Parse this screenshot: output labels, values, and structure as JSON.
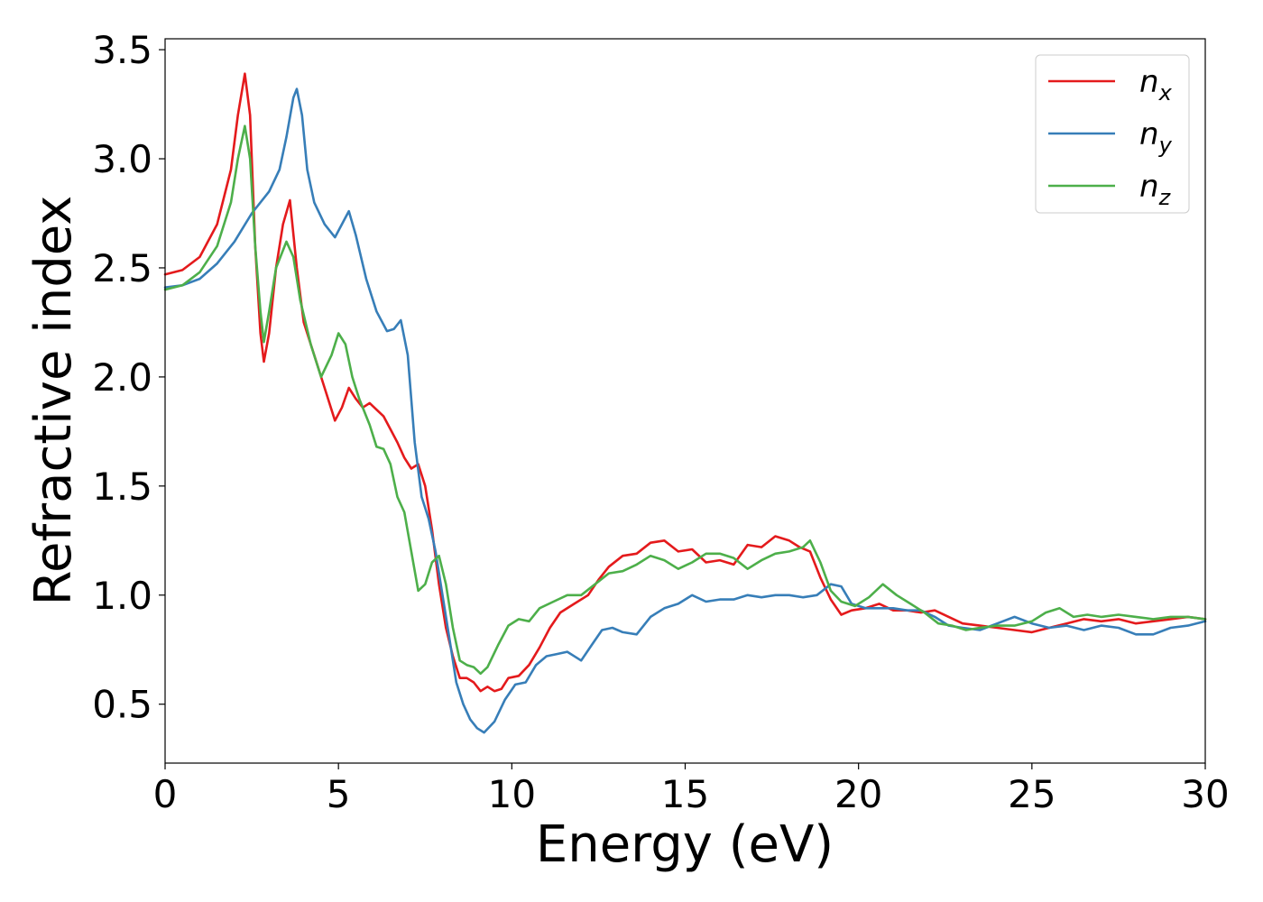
{
  "chart_data": {
    "type": "line",
    "xlabel": "Energy (eV)",
    "ylabel": "Refractive index",
    "xlim": [
      0,
      30
    ],
    "ylim": [
      0.23,
      3.55
    ],
    "xticks": [
      0,
      5,
      10,
      15,
      20,
      25,
      30
    ],
    "xtick_labels": [
      "0",
      "5",
      "10",
      "15",
      "20",
      "25",
      "30"
    ],
    "yticks": [
      0.5,
      1.0,
      1.5,
      2.0,
      2.5,
      3.0,
      3.5
    ],
    "ytick_labels": [
      "0.5",
      "1.0",
      "1.5",
      "2.0",
      "2.5",
      "3.0",
      "3.5"
    ],
    "grid": false,
    "legend_position": "top-right",
    "series": [
      {
        "name": "n",
        "subscript": "x",
        "color": "#e41a1c",
        "points": [
          [
            0,
            2.47
          ],
          [
            0.5,
            2.49
          ],
          [
            1.0,
            2.55
          ],
          [
            1.5,
            2.7
          ],
          [
            1.9,
            2.95
          ],
          [
            2.1,
            3.2
          ],
          [
            2.3,
            3.39
          ],
          [
            2.45,
            3.2
          ],
          [
            2.6,
            2.6
          ],
          [
            2.75,
            2.2
          ],
          [
            2.85,
            2.07
          ],
          [
            3.0,
            2.2
          ],
          [
            3.2,
            2.5
          ],
          [
            3.4,
            2.7
          ],
          [
            3.6,
            2.81
          ],
          [
            3.8,
            2.5
          ],
          [
            4.0,
            2.25
          ],
          [
            4.3,
            2.1
          ],
          [
            4.6,
            1.95
          ],
          [
            4.9,
            1.8
          ],
          [
            5.1,
            1.86
          ],
          [
            5.3,
            1.95
          ],
          [
            5.5,
            1.9
          ],
          [
            5.7,
            1.86
          ],
          [
            5.9,
            1.88
          ],
          [
            6.1,
            1.85
          ],
          [
            6.3,
            1.82
          ],
          [
            6.5,
            1.76
          ],
          [
            6.7,
            1.7
          ],
          [
            6.9,
            1.63
          ],
          [
            7.1,
            1.58
          ],
          [
            7.3,
            1.6
          ],
          [
            7.5,
            1.5
          ],
          [
            7.7,
            1.3
          ],
          [
            7.9,
            1.05
          ],
          [
            8.1,
            0.85
          ],
          [
            8.3,
            0.72
          ],
          [
            8.5,
            0.62
          ],
          [
            8.7,
            0.62
          ],
          [
            8.9,
            0.6
          ],
          [
            9.1,
            0.56
          ],
          [
            9.3,
            0.58
          ],
          [
            9.5,
            0.56
          ],
          [
            9.7,
            0.57
          ],
          [
            9.9,
            0.62
          ],
          [
            10.2,
            0.63
          ],
          [
            10.5,
            0.68
          ],
          [
            10.8,
            0.76
          ],
          [
            11.1,
            0.85
          ],
          [
            11.4,
            0.92
          ],
          [
            11.8,
            0.96
          ],
          [
            12.2,
            1.0
          ],
          [
            12.5,
            1.07
          ],
          [
            12.8,
            1.13
          ],
          [
            13.2,
            1.18
          ],
          [
            13.6,
            1.19
          ],
          [
            14.0,
            1.24
          ],
          [
            14.4,
            1.25
          ],
          [
            14.8,
            1.2
          ],
          [
            15.2,
            1.21
          ],
          [
            15.6,
            1.15
          ],
          [
            16.0,
            1.16
          ],
          [
            16.4,
            1.14
          ],
          [
            16.8,
            1.23
          ],
          [
            17.2,
            1.22
          ],
          [
            17.6,
            1.27
          ],
          [
            18.0,
            1.25
          ],
          [
            18.3,
            1.22
          ],
          [
            18.6,
            1.2
          ],
          [
            18.9,
            1.08
          ],
          [
            19.2,
            0.98
          ],
          [
            19.5,
            0.91
          ],
          [
            19.8,
            0.93
          ],
          [
            20.2,
            0.94
          ],
          [
            20.6,
            0.96
          ],
          [
            21.0,
            0.93
          ],
          [
            21.4,
            0.93
          ],
          [
            21.8,
            0.92
          ],
          [
            22.2,
            0.93
          ],
          [
            22.6,
            0.9
          ],
          [
            23.0,
            0.87
          ],
          [
            23.5,
            0.86
          ],
          [
            24.0,
            0.85
          ],
          [
            24.5,
            0.84
          ],
          [
            25.0,
            0.83
          ],
          [
            25.5,
            0.85
          ],
          [
            26.0,
            0.87
          ],
          [
            26.5,
            0.89
          ],
          [
            27.0,
            0.88
          ],
          [
            27.5,
            0.89
          ],
          [
            28.0,
            0.87
          ],
          [
            28.5,
            0.88
          ],
          [
            29.0,
            0.89
          ],
          [
            29.5,
            0.9
          ],
          [
            30.0,
            0.89
          ]
        ]
      },
      {
        "name": "n",
        "subscript": "y",
        "color": "#377eb8",
        "points": [
          [
            0,
            2.41
          ],
          [
            0.5,
            2.42
          ],
          [
            1.0,
            2.45
          ],
          [
            1.5,
            2.52
          ],
          [
            2.0,
            2.62
          ],
          [
            2.5,
            2.75
          ],
          [
            3.0,
            2.85
          ],
          [
            3.3,
            2.95
          ],
          [
            3.5,
            3.1
          ],
          [
            3.7,
            3.28
          ],
          [
            3.8,
            3.32
          ],
          [
            3.95,
            3.2
          ],
          [
            4.1,
            2.95
          ],
          [
            4.3,
            2.8
          ],
          [
            4.6,
            2.7
          ],
          [
            4.9,
            2.64
          ],
          [
            5.1,
            2.7
          ],
          [
            5.3,
            2.76
          ],
          [
            5.5,
            2.65
          ],
          [
            5.8,
            2.45
          ],
          [
            6.1,
            2.3
          ],
          [
            6.4,
            2.21
          ],
          [
            6.6,
            2.22
          ],
          [
            6.8,
            2.26
          ],
          [
            7.0,
            2.1
          ],
          [
            7.2,
            1.7
          ],
          [
            7.4,
            1.45
          ],
          [
            7.6,
            1.35
          ],
          [
            7.8,
            1.2
          ],
          [
            8.0,
            1.0
          ],
          [
            8.2,
            0.8
          ],
          [
            8.4,
            0.6
          ],
          [
            8.6,
            0.5
          ],
          [
            8.8,
            0.43
          ],
          [
            9.0,
            0.39
          ],
          [
            9.2,
            0.37
          ],
          [
            9.5,
            0.42
          ],
          [
            9.8,
            0.52
          ],
          [
            10.1,
            0.59
          ],
          [
            10.4,
            0.6
          ],
          [
            10.7,
            0.68
          ],
          [
            11.0,
            0.72
          ],
          [
            11.3,
            0.73
          ],
          [
            11.6,
            0.74
          ],
          [
            12.0,
            0.7
          ],
          [
            12.3,
            0.77
          ],
          [
            12.6,
            0.84
          ],
          [
            12.9,
            0.85
          ],
          [
            13.2,
            0.83
          ],
          [
            13.6,
            0.82
          ],
          [
            14.0,
            0.9
          ],
          [
            14.4,
            0.94
          ],
          [
            14.8,
            0.96
          ],
          [
            15.2,
            1.0
          ],
          [
            15.6,
            0.97
          ],
          [
            16.0,
            0.98
          ],
          [
            16.4,
            0.98
          ],
          [
            16.8,
            1.0
          ],
          [
            17.2,
            0.99
          ],
          [
            17.6,
            1.0
          ],
          [
            18.0,
            1.0
          ],
          [
            18.4,
            0.99
          ],
          [
            18.8,
            1.0
          ],
          [
            19.2,
            1.05
          ],
          [
            19.5,
            1.04
          ],
          [
            19.8,
            0.96
          ],
          [
            20.2,
            0.94
          ],
          [
            20.6,
            0.94
          ],
          [
            21.0,
            0.94
          ],
          [
            21.4,
            0.93
          ],
          [
            21.8,
            0.93
          ],
          [
            22.2,
            0.9
          ],
          [
            22.6,
            0.86
          ],
          [
            23.0,
            0.85
          ],
          [
            23.5,
            0.84
          ],
          [
            24.0,
            0.87
          ],
          [
            24.5,
            0.9
          ],
          [
            25.0,
            0.87
          ],
          [
            25.5,
            0.85
          ],
          [
            26.0,
            0.86
          ],
          [
            26.5,
            0.84
          ],
          [
            27.0,
            0.86
          ],
          [
            27.5,
            0.85
          ],
          [
            28.0,
            0.82
          ],
          [
            28.5,
            0.82
          ],
          [
            29.0,
            0.85
          ],
          [
            29.5,
            0.86
          ],
          [
            30.0,
            0.88
          ]
        ]
      },
      {
        "name": "n",
        "subscript": "z",
        "color": "#4daf4a",
        "points": [
          [
            0,
            2.4
          ],
          [
            0.5,
            2.42
          ],
          [
            1.0,
            2.48
          ],
          [
            1.5,
            2.6
          ],
          [
            1.9,
            2.8
          ],
          [
            2.1,
            3.0
          ],
          [
            2.3,
            3.15
          ],
          [
            2.45,
            3.0
          ],
          [
            2.6,
            2.6
          ],
          [
            2.75,
            2.3
          ],
          [
            2.85,
            2.16
          ],
          [
            3.0,
            2.3
          ],
          [
            3.2,
            2.5
          ],
          [
            3.5,
            2.62
          ],
          [
            3.7,
            2.55
          ],
          [
            3.9,
            2.35
          ],
          [
            4.2,
            2.15
          ],
          [
            4.5,
            2.0
          ],
          [
            4.8,
            2.1
          ],
          [
            5.0,
            2.2
          ],
          [
            5.2,
            2.15
          ],
          [
            5.4,
            2.0
          ],
          [
            5.6,
            1.9
          ],
          [
            5.9,
            1.78
          ],
          [
            6.1,
            1.68
          ],
          [
            6.3,
            1.67
          ],
          [
            6.5,
            1.6
          ],
          [
            6.7,
            1.45
          ],
          [
            6.9,
            1.38
          ],
          [
            7.1,
            1.2
          ],
          [
            7.3,
            1.02
          ],
          [
            7.5,
            1.05
          ],
          [
            7.7,
            1.15
          ],
          [
            7.9,
            1.18
          ],
          [
            8.1,
            1.05
          ],
          [
            8.3,
            0.85
          ],
          [
            8.5,
            0.7
          ],
          [
            8.7,
            0.68
          ],
          [
            8.9,
            0.67
          ],
          [
            9.1,
            0.64
          ],
          [
            9.3,
            0.67
          ],
          [
            9.6,
            0.77
          ],
          [
            9.9,
            0.86
          ],
          [
            10.2,
            0.89
          ],
          [
            10.5,
            0.88
          ],
          [
            10.8,
            0.94
          ],
          [
            11.2,
            0.97
          ],
          [
            11.6,
            1.0
          ],
          [
            12.0,
            1.0
          ],
          [
            12.4,
            1.05
          ],
          [
            12.8,
            1.1
          ],
          [
            13.2,
            1.11
          ],
          [
            13.6,
            1.14
          ],
          [
            14.0,
            1.18
          ],
          [
            14.4,
            1.16
          ],
          [
            14.8,
            1.12
          ],
          [
            15.2,
            1.15
          ],
          [
            15.6,
            1.19
          ],
          [
            16.0,
            1.19
          ],
          [
            16.4,
            1.17
          ],
          [
            16.8,
            1.12
          ],
          [
            17.2,
            1.16
          ],
          [
            17.6,
            1.19
          ],
          [
            18.0,
            1.2
          ],
          [
            18.4,
            1.22
          ],
          [
            18.6,
            1.25
          ],
          [
            18.9,
            1.15
          ],
          [
            19.2,
            1.02
          ],
          [
            19.5,
            0.97
          ],
          [
            19.9,
            0.95
          ],
          [
            20.3,
            0.99
          ],
          [
            20.7,
            1.05
          ],
          [
            21.1,
            1.0
          ],
          [
            21.5,
            0.96
          ],
          [
            21.9,
            0.92
          ],
          [
            22.3,
            0.87
          ],
          [
            22.7,
            0.86
          ],
          [
            23.1,
            0.84
          ],
          [
            23.5,
            0.85
          ],
          [
            24.0,
            0.86
          ],
          [
            24.5,
            0.86
          ],
          [
            25.0,
            0.88
          ],
          [
            25.4,
            0.92
          ],
          [
            25.8,
            0.94
          ],
          [
            26.2,
            0.9
          ],
          [
            26.6,
            0.91
          ],
          [
            27.0,
            0.9
          ],
          [
            27.5,
            0.91
          ],
          [
            28.0,
            0.9
          ],
          [
            28.5,
            0.89
          ],
          [
            29.0,
            0.9
          ],
          [
            29.5,
            0.9
          ],
          [
            30.0,
            0.89
          ]
        ]
      }
    ]
  }
}
